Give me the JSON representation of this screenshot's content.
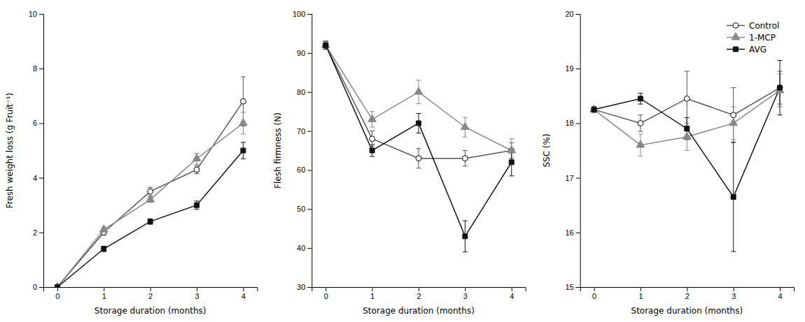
{
  "chart_data": [
    {
      "type": "line",
      "x": [
        0,
        1,
        2,
        3,
        4
      ],
      "xlabel": "Storage duration (months)",
      "ylabel": "Fresh weight loss (g Fruit⁻¹)",
      "xlim": [
        -0.3,
        4.3
      ],
      "xticks": [
        0,
        1,
        2,
        3,
        4
      ],
      "ylim": [
        0,
        10
      ],
      "yticks": [
        0,
        2,
        4,
        6,
        8,
        10
      ],
      "grid": false,
      "series": [
        {
          "name": "Control",
          "color": "#555555",
          "marker": "open-circle",
          "line_style": "solid",
          "values": [
            0,
            2.0,
            3.5,
            4.3,
            6.8
          ],
          "errors": [
            0.0,
            0.1,
            0.15,
            0.15,
            0.9
          ]
        },
        {
          "name": "1-MCP",
          "color": "#888888",
          "marker": "triangle",
          "line_style": "solid",
          "values": [
            0,
            2.1,
            3.2,
            4.7,
            6.0
          ],
          "errors": [
            0.0,
            0.1,
            0.1,
            0.2,
            0.4
          ]
        },
        {
          "name": "AVG",
          "color": "#111111",
          "marker": "square",
          "line_style": "solid",
          "values": [
            0,
            1.4,
            2.4,
            3.0,
            5.0
          ],
          "errors": [
            0.0,
            0.1,
            0.1,
            0.15,
            0.3
          ]
        }
      ]
    },
    {
      "type": "line",
      "x": [
        0,
        1,
        2,
        3,
        4
      ],
      "xlabel": "Storage duration (months)",
      "ylabel": "Flesh firmness (N)",
      "xlim": [
        -0.3,
        4.3
      ],
      "xticks": [
        0,
        1,
        2,
        3,
        4
      ],
      "ylim": [
        30,
        100
      ],
      "yticks": [
        30,
        40,
        50,
        60,
        70,
        80,
        90,
        100
      ],
      "grid": false,
      "series": [
        {
          "name": "Control",
          "color": "#555555",
          "marker": "open-circle",
          "line_style": "solid",
          "values": [
            92,
            68,
            63,
            63,
            65
          ],
          "errors": [
            1.0,
            2.0,
            2.5,
            2.0,
            2.0
          ]
        },
        {
          "name": "1-MCP",
          "color": "#888888",
          "marker": "triangle",
          "line_style": "solid",
          "values": [
            92,
            73,
            80,
            71,
            65
          ],
          "errors": [
            1.0,
            2.0,
            3.0,
            2.5,
            3.0
          ]
        },
        {
          "name": "AVG",
          "color": "#111111",
          "marker": "square",
          "line_style": "solid",
          "values": [
            92,
            65,
            72,
            43,
            62
          ],
          "errors": [
            1.0,
            1.5,
            2.5,
            4.0,
            3.5
          ]
        }
      ]
    },
    {
      "type": "line",
      "x": [
        0,
        1,
        2,
        3,
        4
      ],
      "xlabel": "Storage duration (months)",
      "ylabel": "SSC (%)",
      "xlim": [
        -0.3,
        4.3
      ],
      "xticks": [
        0,
        1,
        2,
        3,
        4
      ],
      "ylim": [
        15,
        20
      ],
      "yticks": [
        15,
        16,
        17,
        18,
        19,
        20
      ],
      "grid": false,
      "legend": "upper right",
      "series": [
        {
          "name": "Control",
          "color": "#555555",
          "marker": "open-circle",
          "line_style": "solid",
          "values": [
            18.25,
            18.0,
            18.45,
            18.15,
            18.65
          ],
          "errors": [
            0.05,
            0.15,
            0.5,
            0.5,
            0.3
          ]
        },
        {
          "name": "1-MCP",
          "color": "#888888",
          "marker": "triangle",
          "line_style": "solid",
          "values": [
            18.25,
            17.6,
            17.75,
            18.0,
            18.6
          ],
          "errors": [
            0.05,
            0.2,
            0.25,
            0.3,
            0.3
          ]
        },
        {
          "name": "AVG",
          "color": "#111111",
          "marker": "square",
          "line_style": "solid",
          "values": [
            18.25,
            18.45,
            17.9,
            16.65,
            18.65
          ],
          "errors": [
            0.05,
            0.1,
            0.2,
            1.0,
            0.5
          ]
        }
      ]
    }
  ]
}
